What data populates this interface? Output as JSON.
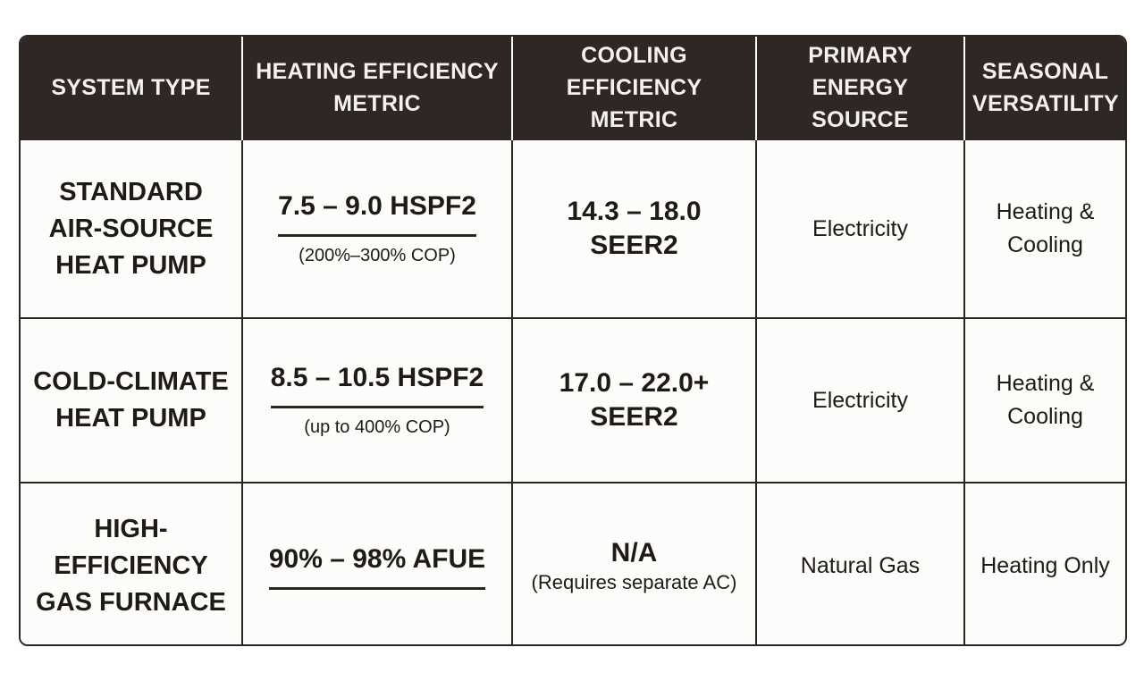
{
  "table": {
    "headers": [
      "SYSTEM TYPE",
      "HEATING EFFICIENCY\nMETRIC",
      "COOLING EFFICIENCY\nMETRIC",
      "PRIMARY ENERGY\nSOURCE",
      "SEASONAL\nVERSATILITY"
    ],
    "rows": [
      {
        "system": "STANDARD\nAIR-SOURCE\nHEAT PUMP",
        "heating_main": "7.5 – 9.0 HSPF2",
        "heating_sub": "(200%–300% COP)",
        "cooling_main": "14.3 – 18.0 SEER2",
        "cooling_sub": "",
        "energy": "Electricity",
        "versatility": "Heating &\nCooling"
      },
      {
        "system": "COLD-CLIMATE\nHEAT PUMP",
        "heating_main": "8.5 – 10.5 HSPF2",
        "heating_sub": "(up to 400% COP)",
        "cooling_main": "17.0 – 22.0+ SEER2",
        "cooling_sub": "",
        "energy": "Electricity",
        "versatility": "Heating &\nCooling"
      },
      {
        "system": "HIGH-EFFICIENCY\nGAS FURNACE",
        "heating_main": "90% – 98% AFUE",
        "heating_sub": "",
        "cooling_main": "N/A",
        "cooling_sub": "(Requires separate AC)",
        "energy": "Natural Gas",
        "versatility": "Heating Only"
      }
    ]
  },
  "colors": {
    "header_bg": "#2e2724",
    "header_text": "#f5f1ec",
    "border": "#2d2522",
    "body_text": "#1f1a17"
  }
}
